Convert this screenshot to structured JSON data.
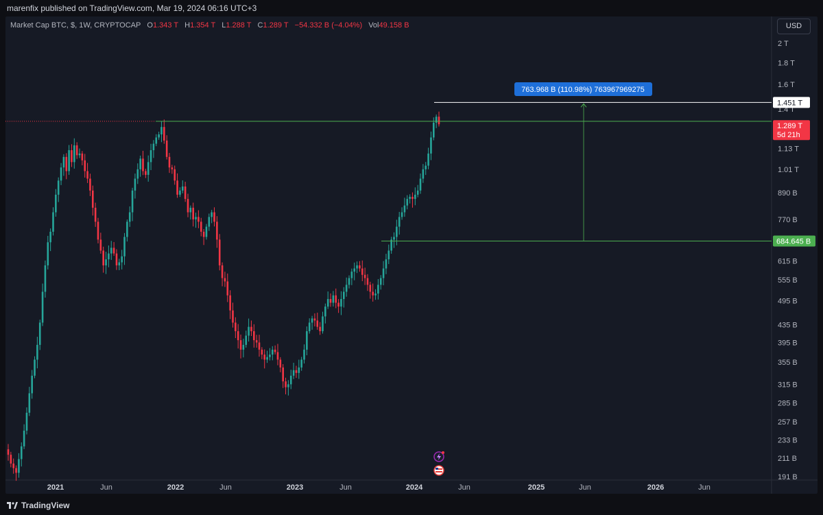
{
  "publisher": "marenfix published on TradingView.com, Mar 19, 2024 06:16 UTC+3",
  "legend": {
    "symbol": "Market Cap BTC, $, 1W, CRYPTOCAP",
    "o_label": "O",
    "o": "1.343 T",
    "h_label": "H",
    "h": "1.354 T",
    "l_label": "L",
    "l": "1.288 T",
    "c_label": "C",
    "c": "1.289 T",
    "change": "−54.332 B (−4.04%)",
    "vol_label": "Vol",
    "vol": "49.158 B"
  },
  "currency_button": "USD",
  "footer_brand": "TradingView",
  "colors": {
    "up": "#26a69a",
    "down": "#f23645",
    "background": "#161a25",
    "measure": "#2962ff",
    "green_line": "#4caf50"
  },
  "chart_data": {
    "type": "candlestick",
    "scale": "log",
    "x_ticks": [
      "2021",
      "Jun",
      "2022",
      "Jun",
      "2023",
      "Jun",
      "2024",
      "Jun",
      "2025",
      "Jun",
      "2026",
      "Jun"
    ],
    "y_ticks": [
      "2 T",
      "1.8 T",
      "1.6 T",
      "1.4 T",
      "1.13 T",
      "1.01 T",
      "890 B",
      "770 B",
      "615 B",
      "555 B",
      "495 B",
      "435 B",
      "395 B",
      "355 B",
      "315 B",
      "285 B",
      "257 B",
      "233 B",
      "211 B",
      "191 B"
    ],
    "ylim_billions": [
      185,
      2150
    ],
    "price_labels": {
      "high_line": "1.451 T",
      "current": "1.289 T",
      "countdown": "5d 21h",
      "low_line": "684.645 B"
    },
    "measure_label": "763.968 B (110.98%) 763967969275",
    "weekly_closes_billions": [
      215,
      205,
      200,
      195,
      210,
      225,
      245,
      270,
      300,
      330,
      360,
      390,
      440,
      520,
      600,
      680,
      720,
      800,
      880,
      950,
      1020,
      1080,
      1000,
      1120,
      1050,
      1150,
      1090,
      1100,
      1060,
      1000,
      960,
      900,
      820,
      760,
      690,
      650,
      600,
      620,
      640,
      660,
      640,
      600,
      610,
      630,
      700,
      760,
      800,
      900,
      960,
      1010,
      1070,
      1000,
      980,
      1050,
      1120,
      1160,
      1200,
      1220,
      1270,
      1180,
      1080,
      1020,
      1010,
      950,
      880,
      900,
      920,
      860,
      800,
      820,
      770,
      780,
      760,
      720,
      700,
      740,
      780,
      800,
      760,
      690,
      600,
      560,
      550,
      510,
      470,
      440,
      420,
      400,
      380,
      390,
      410,
      430,
      420,
      400,
      395,
      380,
      370,
      360,
      365,
      370,
      380,
      375,
      360,
      345,
      320,
      310,
      315,
      330,
      340,
      335,
      345,
      360,
      380,
      420,
      440,
      450,
      445,
      430,
      420,
      455,
      480,
      500,
      490,
      510,
      490,
      480,
      500,
      520,
      540,
      560,
      580,
      590,
      600,
      590,
      570,
      560,
      540,
      520,
      510,
      515,
      540,
      560,
      590,
      620,
      650,
      690,
      700,
      740,
      780,
      800,
      830,
      860,
      870,
      860,
      880,
      900,
      960,
      1010,
      1030,
      1100,
      1200,
      1300,
      1343,
      1289
    ]
  }
}
